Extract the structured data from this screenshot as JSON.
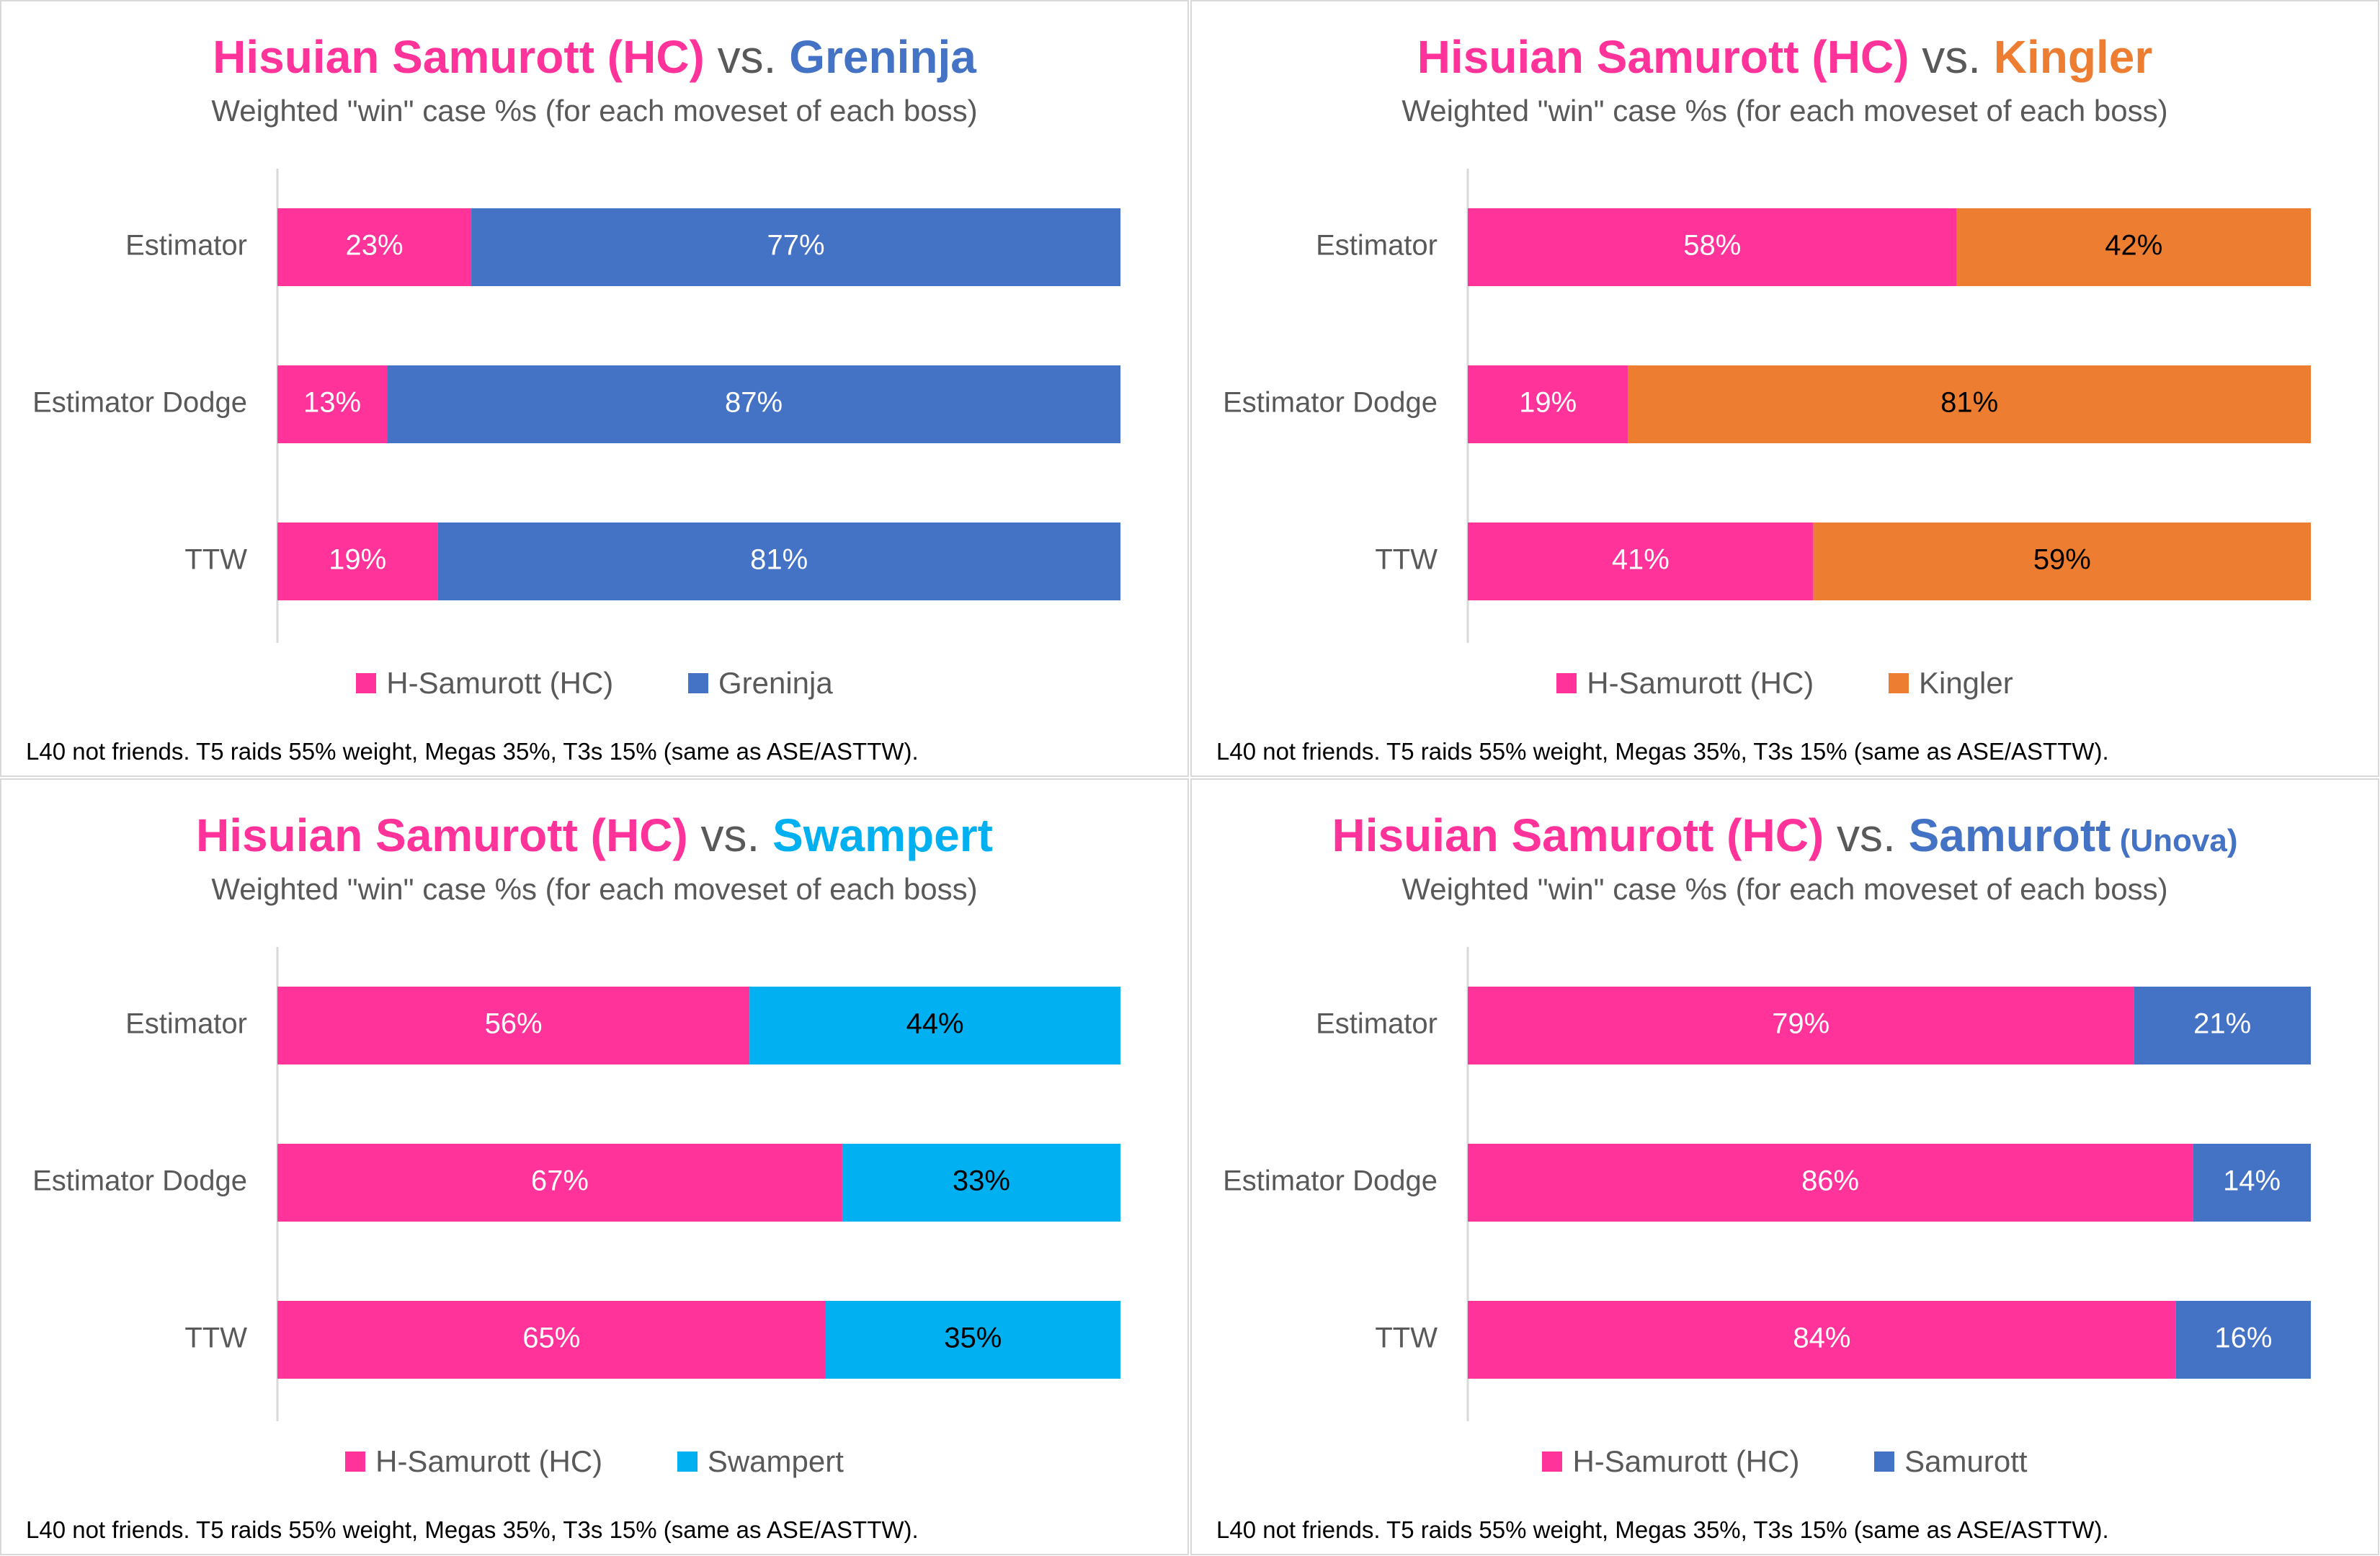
{
  "chart_data": [
    {
      "type": "bar",
      "stacked": "100%",
      "orientation": "horizontal",
      "title_parts": [
        "Hisuian Samurott (HC)",
        " vs. ",
        "Greninja",
        ""
      ],
      "title_colors": [
        "#ff3399",
        "#4472c4"
      ],
      "subtitle": "Weighted \"win\" case %s (for each moveset of each boss)",
      "categories": [
        "Estimator",
        "Estimator Dodge",
        "TTW"
      ],
      "series": [
        {
          "name": "H-Samurott (HC)",
          "values": [
            23,
            13,
            19
          ],
          "color": "#ff3399",
          "label_color": "#ffffff"
        },
        {
          "name": "Greninja",
          "values": [
            77,
            87,
            81
          ],
          "color": "#4472c4",
          "label_color": "#ffffff"
        }
      ],
      "xlim": [
        0,
        100
      ],
      "legend_position": "bottom",
      "footnote": "L40 not friends. T5 raids 55% weight, Megas 35%, T3s 15% (same as ASE/ASTTW)."
    },
    {
      "type": "bar",
      "stacked": "100%",
      "orientation": "horizontal",
      "title_parts": [
        "Hisuian Samurott (HC)",
        " vs. ",
        "Kingler",
        ""
      ],
      "title_colors": [
        "#ff3399",
        "#ed7d31"
      ],
      "subtitle": "Weighted \"win\" case %s (for each moveset of each boss)",
      "categories": [
        "Estimator",
        "Estimator Dodge",
        "TTW"
      ],
      "series": [
        {
          "name": "H-Samurott (HC)",
          "values": [
            58,
            19,
            41
          ],
          "color": "#ff3399",
          "label_color": "#ffffff"
        },
        {
          "name": "Kingler",
          "values": [
            42,
            81,
            59
          ],
          "color": "#ed7d31",
          "label_color": "#000000"
        }
      ],
      "xlim": [
        0,
        100
      ],
      "legend_position": "bottom",
      "footnote": "L40 not friends. T5 raids 55% weight, Megas 35%, T3s 15% (same as ASE/ASTTW)."
    },
    {
      "type": "bar",
      "stacked": "100%",
      "orientation": "horizontal",
      "title_parts": [
        "Hisuian Samurott (HC)",
        " vs. ",
        "Swampert",
        ""
      ],
      "title_colors": [
        "#ff3399",
        "#00b0f0"
      ],
      "subtitle": "Weighted \"win\" case %s (for each moveset of each boss)",
      "categories": [
        "Estimator",
        "Estimator Dodge",
        "TTW"
      ],
      "series": [
        {
          "name": "H-Samurott (HC)",
          "values": [
            56,
            67,
            65
          ],
          "color": "#ff3399",
          "label_color": "#ffffff"
        },
        {
          "name": "Swampert",
          "values": [
            44,
            33,
            35
          ],
          "color": "#00b0f0",
          "label_color": "#000000"
        }
      ],
      "xlim": [
        0,
        100
      ],
      "legend_position": "bottom",
      "footnote": "L40 not friends. T5 raids 55% weight, Megas 35%, T3s 15% (same as ASE/ASTTW)."
    },
    {
      "type": "bar",
      "stacked": "100%",
      "orientation": "horizontal",
      "title_parts": [
        "Hisuian Samurott (HC)",
        " vs. ",
        "Samurott",
        " (Unova)"
      ],
      "title_colors": [
        "#ff3399",
        "#4472c4"
      ],
      "subtitle": "Weighted \"win\" case %s (for each moveset of each boss)",
      "categories": [
        "Estimator",
        "Estimator Dodge",
        "TTW"
      ],
      "series": [
        {
          "name": "H-Samurott (HC)",
          "values": [
            79,
            86,
            84
          ],
          "color": "#ff3399",
          "label_color": "#ffffff"
        },
        {
          "name": "Samurott",
          "values": [
            21,
            14,
            16
          ],
          "color": "#4472c4",
          "label_color": "#ffffff"
        }
      ],
      "xlim": [
        0,
        100
      ],
      "legend_position": "bottom",
      "footnote": "L40 not friends. T5 raids 55% weight, Megas 35%, T3s 15% (same as ASE/ASTTW)."
    }
  ]
}
